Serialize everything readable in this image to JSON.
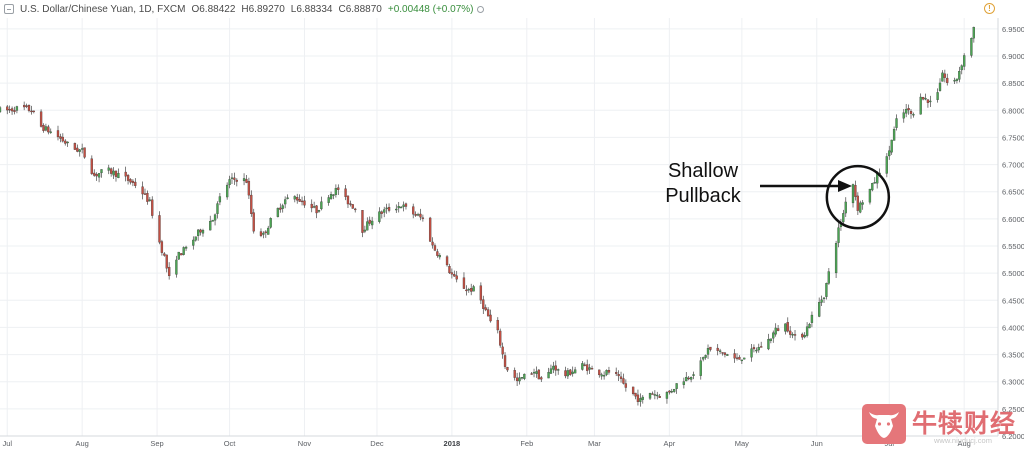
{
  "header": {
    "symbol": "U.S. Dollar/Chinese Yuan, 1D, FXCM",
    "open": "O6.88422",
    "high": "H6.89270",
    "low": "L6.88334",
    "close": "C6.88870",
    "change": "+0.00448 (+0.07%)"
  },
  "annotation": {
    "line1": "Shallow",
    "line2": "Pullback"
  },
  "watermark": {
    "name": "牛犊财经",
    "url": "www.niuducj.com"
  },
  "icons": {
    "collapse": "collapse-icon",
    "alert": "alert-icon",
    "logo": "bull-head-icon"
  },
  "colors": {
    "up": "#4ca454",
    "down": "#c24f43",
    "grid": "#eef0f3",
    "annotation": "#111111"
  },
  "chart_data": {
    "type": "candlestick",
    "y_axis": {
      "ticks": [
        "6.95000",
        "6.90000",
        "6.85000",
        "6.80000",
        "6.75000",
        "6.70000",
        "6.65000",
        "6.60000",
        "6.55000",
        "6.50000",
        "6.45000",
        "6.40000",
        "6.35000",
        "6.30000",
        "6.25000",
        "6.20000"
      ],
      "range": [
        6.2,
        6.97
      ]
    },
    "x_axis": {
      "labels": [
        {
          "text": "Jul",
          "day": 0
        },
        {
          "text": "Aug",
          "day": 31
        },
        {
          "text": "Sep",
          "day": 62
        },
        {
          "text": "Oct",
          "day": 92
        },
        {
          "text": "Nov",
          "day": 123
        },
        {
          "text": "Dec",
          "day": 153
        },
        {
          "text": "2018",
          "day": 184,
          "bold": true
        },
        {
          "text": "Feb",
          "day": 215
        },
        {
          "text": "Mar",
          "day": 243
        },
        {
          "text": "Apr",
          "day": 274
        },
        {
          "text": "May",
          "day": 304
        },
        {
          "text": "Jun",
          "day": 335
        },
        {
          "text": "Jul",
          "day": 365
        },
        {
          "text": "Aug",
          "day": 396
        }
      ],
      "day_range": [
        -3,
        410
      ]
    },
    "anchors": [
      [
        -3,
        6.8
      ],
      [
        0,
        6.8
      ],
      [
        6,
        6.805
      ],
      [
        10,
        6.8
      ],
      [
        14,
        6.77
      ],
      [
        20,
        6.755
      ],
      [
        27,
        6.73
      ],
      [
        31,
        6.725
      ],
      [
        36,
        6.68
      ],
      [
        41,
        6.69
      ],
      [
        47,
        6.68
      ],
      [
        54,
        6.66
      ],
      [
        59,
        6.63
      ],
      [
        62,
        6.57
      ],
      [
        65,
        6.53
      ],
      [
        67,
        6.49
      ],
      [
        70,
        6.53
      ],
      [
        75,
        6.55
      ],
      [
        80,
        6.58
      ],
      [
        85,
        6.6
      ],
      [
        89,
        6.65
      ],
      [
        92,
        6.67
      ],
      [
        96,
        6.675
      ],
      [
        99,
        6.67
      ],
      [
        102,
        6.58
      ],
      [
        106,
        6.57
      ],
      [
        110,
        6.605
      ],
      [
        115,
        6.635
      ],
      [
        119,
        6.64
      ],
      [
        123,
        6.63
      ],
      [
        128,
        6.615
      ],
      [
        133,
        6.645
      ],
      [
        137,
        6.655
      ],
      [
        140,
        6.635
      ],
      [
        144,
        6.62
      ],
      [
        147,
        6.58
      ],
      [
        151,
        6.6
      ],
      [
        156,
        6.615
      ],
      [
        163,
        6.625
      ],
      [
        168,
        6.61
      ],
      [
        172,
        6.6
      ],
      [
        176,
        6.55
      ],
      [
        180,
        6.525
      ],
      [
        185,
        6.49
      ],
      [
        190,
        6.47
      ],
      [
        194,
        6.47
      ],
      [
        197,
        6.44
      ],
      [
        200,
        6.41
      ],
      [
        203,
        6.39
      ],
      [
        206,
        6.33
      ],
      [
        211,
        6.3
      ],
      [
        214,
        6.31
      ],
      [
        218,
        6.32
      ],
      [
        222,
        6.3
      ],
      [
        226,
        6.33
      ],
      [
        230,
        6.31
      ],
      [
        234,
        6.32
      ],
      [
        238,
        6.33
      ],
      [
        243,
        6.32
      ],
      [
        247,
        6.315
      ],
      [
        250,
        6.32
      ],
      [
        254,
        6.3
      ],
      [
        258,
        6.28
      ],
      [
        262,
        6.265
      ],
      [
        266,
        6.28
      ],
      [
        270,
        6.275
      ],
      [
        274,
        6.28
      ],
      [
        278,
        6.3
      ],
      [
        282,
        6.31
      ],
      [
        286,
        6.325
      ],
      [
        290,
        6.36
      ],
      [
        294,
        6.355
      ],
      [
        298,
        6.35
      ],
      [
        302,
        6.34
      ],
      [
        306,
        6.35
      ],
      [
        310,
        6.36
      ],
      [
        314,
        6.37
      ],
      [
        318,
        6.395
      ],
      [
        322,
        6.405
      ],
      [
        326,
        6.38
      ],
      [
        330,
        6.39
      ],
      [
        334,
        6.43
      ],
      [
        338,
        6.46
      ],
      [
        341,
        6.52
      ],
      [
        344,
        6.58
      ],
      [
        346,
        6.61
      ],
      [
        348,
        6.66
      ],
      [
        350,
        6.665
      ],
      [
        352,
        6.62
      ],
      [
        355,
        6.64
      ],
      [
        358,
        6.66
      ],
      [
        361,
        6.69
      ],
      [
        364,
        6.71
      ],
      [
        368,
        6.78
      ],
      [
        372,
        6.8
      ],
      [
        375,
        6.79
      ],
      [
        378,
        6.83
      ],
      [
        381,
        6.815
      ],
      [
        384,
        6.82
      ],
      [
        387,
        6.87
      ],
      [
        390,
        6.84
      ],
      [
        393,
        6.86
      ],
      [
        396,
        6.9
      ],
      [
        398,
        6.92
      ],
      [
        400,
        6.95
      ]
    ],
    "annotation_circle": {
      "day": 352,
      "value": 6.64
    }
  }
}
